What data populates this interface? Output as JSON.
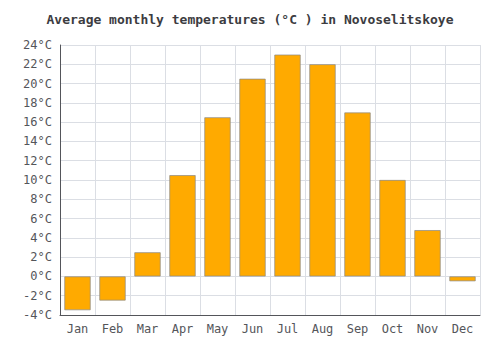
{
  "chart_data": {
    "type": "bar",
    "title": "Average monthly temperatures (°C ) in Novoselitskoye",
    "categories": [
      "Jan",
      "Feb",
      "Mar",
      "Apr",
      "May",
      "Jun",
      "Jul",
      "Aug",
      "Sep",
      "Oct",
      "Nov",
      "Dec"
    ],
    "values": [
      -3.5,
      -2.5,
      2.5,
      10.5,
      16.5,
      20.5,
      23.0,
      22.0,
      17.0,
      10.0,
      4.8,
      -0.5
    ],
    "color": "#FFAA00",
    "ylim": [
      -4,
      24
    ],
    "yticks": [
      {
        "value": -4,
        "label": "-4°C"
      },
      {
        "value": -2,
        "label": "-2°C"
      },
      {
        "value": 0,
        "label": "0°C"
      },
      {
        "value": 2,
        "label": "2°C"
      },
      {
        "value": 4,
        "label": "4°C"
      },
      {
        "value": 6,
        "label": "6°C"
      },
      {
        "value": 8,
        "label": "8°C"
      },
      {
        "value": 10,
        "label": "10°C"
      },
      {
        "value": 12,
        "label": "12°C"
      },
      {
        "value": 14,
        "label": "14°C"
      },
      {
        "value": 16,
        "label": "16°C"
      },
      {
        "value": 18,
        "label": "18°C"
      },
      {
        "value": 20,
        "label": "20°C"
      },
      {
        "value": 22,
        "label": "22°C"
      },
      {
        "value": 24,
        "label": "24°C"
      }
    ],
    "grid": true
  }
}
